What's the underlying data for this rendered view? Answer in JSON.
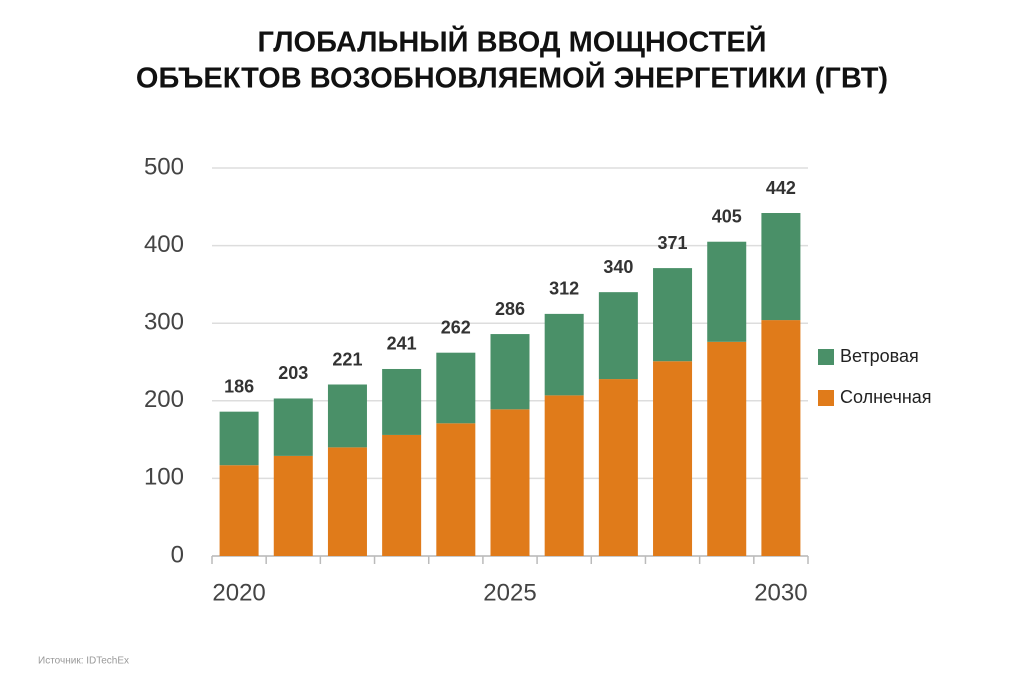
{
  "chart_data": {
    "type": "stacked_bar",
    "title": [
      "ГЛОБАЛЬНЫЙ ВВОД МОЩНОСТЕЙ",
      "ОБЪЕКТОВ ВОЗОБНОВЛЯЕМОЙ ЭНЕРГЕТИКИ (ГВТ)"
    ],
    "categories": [
      "2020",
      null,
      null,
      null,
      null,
      "2025",
      null,
      null,
      null,
      null,
      "2030"
    ],
    "series": [
      {
        "name": "Солнечная",
        "color": "#e07b1a",
        "values": [
          117,
          129,
          140,
          156,
          171,
          189,
          207,
          228,
          251,
          276,
          304
        ]
      },
      {
        "name": "Ветровая",
        "color": "#4a9068",
        "values": [
          69,
          74,
          81,
          85,
          91,
          97,
          105,
          112,
          120,
          129,
          138
        ]
      }
    ],
    "totals": [
      186,
      203,
      221,
      241,
      262,
      286,
      312,
      340,
      371,
      405,
      442
    ],
    "ylim": [
      0,
      500
    ],
    "yticks": [
      0,
      100,
      200,
      300,
      400,
      500
    ],
    "grid": true,
    "legend": "right",
    "source": "Источник: IDTechEx"
  }
}
